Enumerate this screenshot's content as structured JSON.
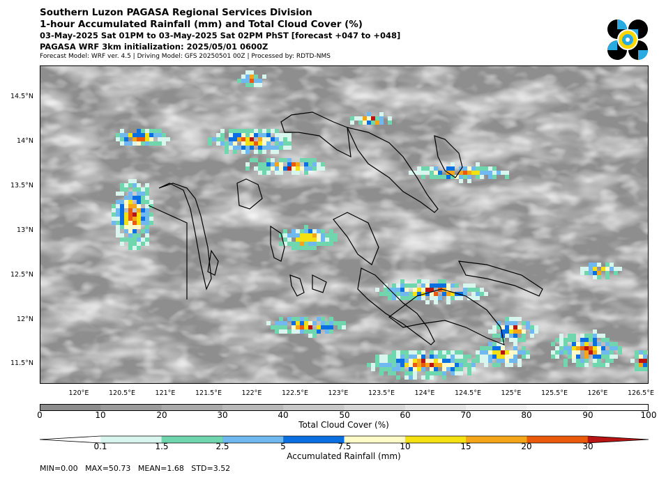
{
  "header": {
    "line1": "Southern Luzon PAGASA Regional Services Division",
    "line2": "1-hour Accumulated Rainfall (mm) and Total Cloud Cover (%)",
    "line3": "03-May-2025 Sat 01PM to 03-May-2025 Sat 02PM PhST [forecast +047 to +048]",
    "line4": "PAGASA WRF 3km initialization: 2025/05/01 0600Z",
    "line5": "Forecast Model: WRF ver. 4.5 | Driving Model: GFS 20250501 00Z | Processed by: RDTD-NMS"
  },
  "logo": {
    "icon": "pagasa-logo-icon",
    "colors": [
      "#000000",
      "#29abe2",
      "#ffd700"
    ]
  },
  "map": {
    "lat_labels": [
      "14.5°N",
      "14°N",
      "13.5°N",
      "13°N",
      "12.5°N",
      "12°N",
      "11.5°N"
    ],
    "lon_labels": [
      "120°E",
      "120.5°E",
      "121°E",
      "121.5°E",
      "122°E",
      "122.5°E",
      "123°E",
      "123.5°E",
      "124°E",
      "124.5°E",
      "125°E",
      "125.5°E",
      "126°E",
      "126.5°E"
    ]
  },
  "cloud_colorbar": {
    "ticks": [
      "0",
      "10",
      "20",
      "30",
      "40",
      "50",
      "60",
      "70",
      "80",
      "90",
      "100"
    ],
    "colors": [
      "#8c8c8c",
      "#9b9b9b",
      "#aaaaaa",
      "#b9b9b9",
      "#c8c8c8",
      "#d6d6d6",
      "#e3e3e3",
      "#eeeeee",
      "#f6f6f6",
      "#ffffff"
    ],
    "label": "Total Cloud Cover (%)"
  },
  "rain_colorbar": {
    "ticks": [
      "0.1",
      "1.5",
      "2.5",
      "5",
      "7.5",
      "10",
      "15",
      "20",
      "30"
    ],
    "colors": [
      "#ffffff",
      "#d8f5ee",
      "#6fd6ad",
      "#6fb8f0",
      "#0a6fe0",
      "#fffbc8",
      "#f5e012",
      "#f5a518",
      "#eb5a0a",
      "#b81414"
    ],
    "label": "Accumulated Rainfall (mm)"
  },
  "stats": "MIN=0.00   MAX=50.73   MEAN=1.68   STD=3.52"
}
